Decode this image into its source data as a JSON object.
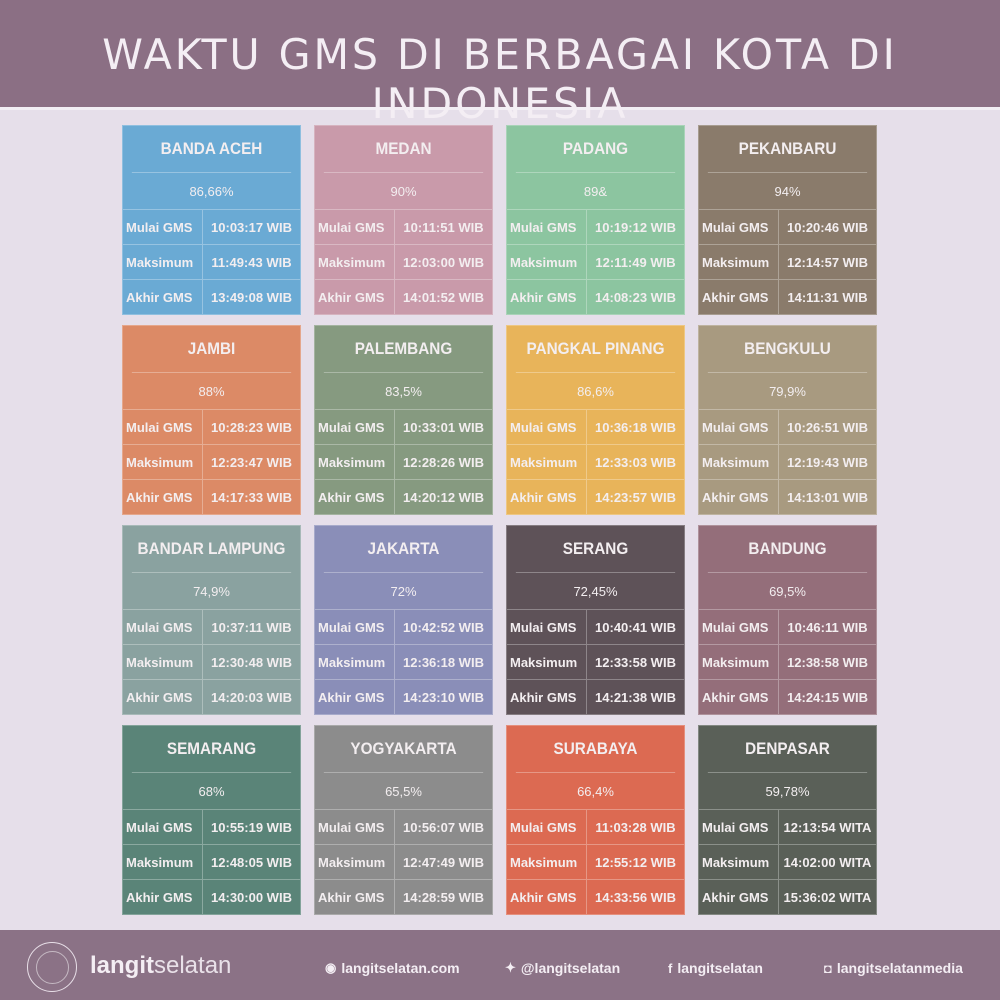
{
  "header": {
    "title": "WAKTU GMS DI BERBAGAI KOTA DI INDONESIA"
  },
  "labels": {
    "start": "Mulai GMS",
    "max": "Maksimum",
    "end": "Akhir GMS"
  },
  "cities": [
    {
      "name": "BANDA ACEH",
      "percent": "86,66%",
      "start": "10:03:17 WIB",
      "max": "11:49:43 WIB",
      "end": "13:49:08 WIB",
      "color": "#6aaad4"
    },
    {
      "name": "MEDAN",
      "percent": "90%",
      "start": "10:11:51 WIB",
      "max": "12:03:00 WIB",
      "end": "14:01:52 WIB",
      "color": "#c99aaa"
    },
    {
      "name": "PADANG",
      "percent": "89&",
      "start": "10:19:12 WIB",
      "max": "12:11:49 WIB",
      "end": "14:08:23 WIB",
      "color": "#8cc5a0"
    },
    {
      "name": "PEKANBARU",
      "percent": "94%",
      "start": "10:20:46 WIB",
      "max": "12:14:57 WIB",
      "end": "14:11:31 WIB",
      "color": "#8a7b6b"
    },
    {
      "name": "JAMBI",
      "percent": "88%",
      "start": "10:28:23 WIB",
      "max": "12:23:47 WIB",
      "end": "14:17:33 WIB",
      "color": "#dc8a66"
    },
    {
      "name": "PALEMBANG",
      "percent": "83,5%",
      "start": "10:33:01 WIB",
      "max": "12:28:26 WIB",
      "end": "14:20:12 WIB",
      "color": "#869a80"
    },
    {
      "name": "PANGKAL PINANG",
      "percent": "86,6%",
      "start": "10:36:18 WIB",
      "max": "12:33:03 WIB",
      "end": "14:23:57 WIB",
      "color": "#e8b45a"
    },
    {
      "name": "BENGKULU",
      "percent": "79,9%",
      "start": "10:26:51 WIB",
      "max": "12:19:43 WIB",
      "end": "14:13:01 WIB",
      "color": "#a89a80"
    },
    {
      "name": "BANDAR LAMPUNG",
      "percent": "74,9%",
      "start": "10:37:11 WIB",
      "max": "12:30:48 WIB",
      "end": "14:20:03 WIB",
      "color": "#8aa2a0"
    },
    {
      "name": "JAKARTA",
      "percent": "72%",
      "start": "10:42:52 WIB",
      "max": "12:36:18 WIB",
      "end": "14:23:10 WIB",
      "color": "#8a8eb8"
    },
    {
      "name": "SERANG",
      "percent": "72,45%",
      "start": "10:40:41 WIB",
      "max": "12:33:58 WIB",
      "end": "14:21:38 WIB",
      "color": "#5e5258"
    },
    {
      "name": "BANDUNG",
      "percent": "69,5%",
      "start": "10:46:11 WIB",
      "max": "12:38:58 WIB",
      "end": "14:24:15 WIB",
      "color": "#946e7a"
    },
    {
      "name": "SEMARANG",
      "percent": "68%",
      "start": "10:55:19 WIB",
      "max": "12:48:05 WIB",
      "end": "14:30:00 WIB",
      "color": "#5a8478"
    },
    {
      "name": "YOGYAKARTA",
      "percent": "65,5%",
      "start": "10:56:07 WIB",
      "max": "12:47:49 WIB",
      "end": "14:28:59 WIB",
      "color": "#8c8c8c"
    },
    {
      "name": "SURABAYA",
      "percent": "66,4%",
      "start": "11:03:28 WIB",
      "max": "12:55:12 WIB",
      "end": "14:33:56 WIB",
      "color": "#dc6a52"
    },
    {
      "name": "DENPASAR",
      "percent": "59,78%",
      "start": "12:13:54 WITA",
      "max": "14:02:00 WITA",
      "end": "15:36:02 WITA",
      "color": "#5a6058"
    }
  ],
  "footer": {
    "logo_text": "LANGITSELATAN",
    "brand_bold": "langit",
    "brand_light": "selatan",
    "website": {
      "icon": "rss-icon",
      "text": "langitselatan.com"
    },
    "twitter": {
      "icon": "twitter-icon",
      "text": "@langitselatan"
    },
    "facebook": {
      "icon": "facebook-icon",
      "text": "langitselatan"
    },
    "instagram": {
      "icon": "instagram-icon",
      "text": "langitselatanmedia"
    }
  }
}
